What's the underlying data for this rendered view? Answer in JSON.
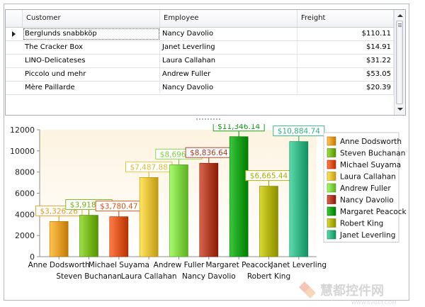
{
  "grid": {
    "columns": [
      "Customer",
      "Employee",
      "Freight"
    ],
    "rows": [
      {
        "customer": "Berglunds snabbköp",
        "employee": "Nancy Davolio",
        "freight": "$110.11",
        "selected": true
      },
      {
        "customer": "The Cracker Box",
        "employee": "Janet Leverling",
        "freight": "$14.91"
      },
      {
        "customer": "LINO-Delicateses",
        "employee": "Laura Callahan",
        "freight": "$31.22"
      },
      {
        "customer": "Piccolo und mehr",
        "employee": "Andrew Fuller",
        "freight": "$53.05"
      },
      {
        "customer": "Mère Paillarde",
        "employee": "Nancy Davolio",
        "freight": "$20.39"
      }
    ]
  },
  "chart_data": {
    "type": "bar",
    "categories": [
      "Anne Dodsworth",
      "Steven Buchanan",
      "Michael Suyama",
      "Laura Callahan",
      "Andrew Fuller",
      "Nancy Davolio",
      "Margaret Peacock",
      "Robert King",
      "Janet Leverling"
    ],
    "values": [
      3326.26,
      3918.71,
      3780.47,
      7487.88,
      8696.41,
      8836.64,
      11346.14,
      6665.44,
      10884.74
    ],
    "data_labels": [
      "$3,326.26",
      "$3,918.71",
      "$3,780.47",
      "$7,487.88",
      "$8,696.41",
      "$8,836.64",
      "$11,346.14",
      "$6,665.44",
      "$10,884.74"
    ],
    "colors": [
      "#e8a32e",
      "#7dbc24",
      "#e05a25",
      "#e8c43e",
      "#86d94a",
      "#b5432c",
      "#1ea51f",
      "#b6b614",
      "#3bb88a"
    ],
    "ylim": [
      0,
      12000
    ],
    "yticks": [
      0,
      2000,
      4000,
      6000,
      8000,
      10000,
      12000
    ],
    "grid": false,
    "legend": "right",
    "title": "",
    "xlabel": "",
    "ylabel": ""
  },
  "watermark": {
    "text": "慧都控件网",
    "sub": "WWW.EVGET.COM"
  }
}
